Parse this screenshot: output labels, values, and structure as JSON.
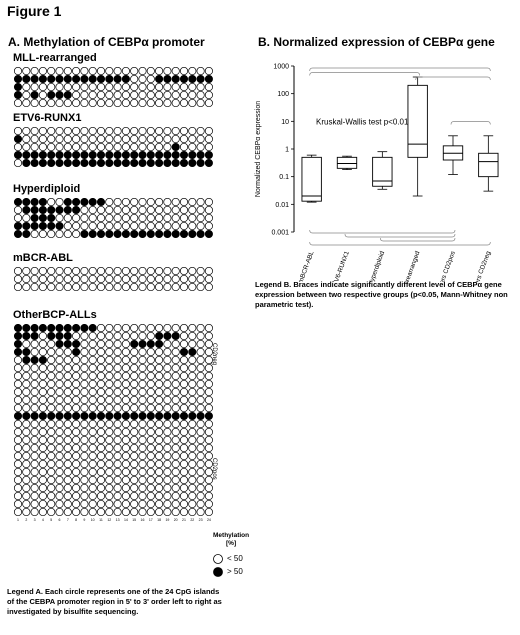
{
  "figure_title": "Figure 1",
  "panel_a": {
    "title": "A. Methylation of CEBPα promoter",
    "groups": [
      {
        "name": "MLL-rearranged",
        "rows": [
          "000000000000000000000000",
          "111111111111110001111111",
          "100000000000000000000000",
          "101011100000000000000000",
          "000000000000000000000000"
        ]
      },
      {
        "name": "ETV6-RUNX1",
        "rows": [
          "000000000000000000000000",
          "100000000000000000000000",
          "000000000000000000010000",
          "111111111111111111111111",
          "011111111111111111111111"
        ]
      },
      {
        "name": "Hyperdiploid",
        "rows": [
          "111100111110000000000000",
          "011111110000000000000000",
          "001110000000000000000000",
          "111111000000000000000000",
          "110000001111111111111111"
        ]
      },
      {
        "name": "mBCR-ABL",
        "rows": [
          "000000000000000000000000",
          "000000000000000000000000",
          "000000000000000000000000"
        ]
      },
      {
        "name": "OtherBCP-ALLs",
        "rows": [
          "111111111100000000000000",
          "111011100000000001110000",
          "100001110000001111000000",
          "110000010000000000001100",
          "011100000000000000000000",
          "000000000000000000000000",
          "000000000000000000000000",
          "000000000000000000000000",
          "000000000000000000000000",
          "000000000000000000000000",
          "000000000000000000000000",
          "111111111111111111111111",
          "000000000000000000000000",
          "000000000000000000000000",
          "000000000000000000000000",
          "000000000000000000000000",
          "000000000000000000000000",
          "000000000000000000000000",
          "000000000000000000000000",
          "000000000000000000000000",
          "000000000000000000000000",
          "000000000000000000000000",
          "000000000000000000000000",
          "000000000000000000000000"
        ]
      }
    ],
    "side_labels": [
      "CD2neg",
      "CD2pos"
    ],
    "methylation_legend": {
      "title_line1": "Methylation",
      "title_line2": "[%]",
      "low": "< 50",
      "high": "> 50"
    },
    "legend_text": "Legend A. Each circle represents one of the 24 CpG islands of the CEBPA promoter region in 5' to 3' order left to right as investigated by bisulfite sequencing."
  },
  "panel_b": {
    "title": "B. Normalized expression of CEBPα gene",
    "annotation": "Kruskal-Wallis test p<0.01",
    "legend_text": "Legend B. Braces indicate significantly different level of CEBPα gene expression between two respective groups (p<0.05, Mann-Whitney non parametric test)."
  },
  "chart_data": {
    "type": "box",
    "ylabel": "Normalized CEBPα expression",
    "yscale": "log",
    "ylim": [
      0.001,
      1000
    ],
    "yticks": [
      "0.001",
      "0.01",
      "0.1",
      "1",
      "10",
      "100",
      "1000"
    ],
    "categories": [
      "mBCR-ABL",
      "ETV6-RUNX1",
      "Hyperdiploid",
      "MLL-rearranged",
      "others CD2pos",
      "others CD2neg"
    ],
    "boxes": [
      {
        "min": 0.012,
        "q1": 0.013,
        "median": 0.02,
        "q3": 0.5,
        "max": 0.6
      },
      {
        "min": 0.18,
        "q1": 0.2,
        "median": 0.3,
        "q3": 0.5,
        "max": 0.55
      },
      {
        "min": 0.035,
        "q1": 0.045,
        "median": 0.07,
        "q3": 0.5,
        "max": 0.8
      },
      {
        "min": 0.02,
        "q1": 0.5,
        "median": 1.5,
        "q3": 200,
        "max": 400
      },
      {
        "min": 0.12,
        "q1": 0.4,
        "median": 0.7,
        "q3": 1.3,
        "max": 3
      },
      {
        "min": 0.03,
        "q1": 0.1,
        "median": 0.35,
        "q3": 0.7,
        "max": 3
      }
    ],
    "braces_top": [
      [
        0,
        5
      ],
      [
        0,
        3
      ],
      [
        3,
        5
      ],
      [
        4,
        5
      ]
    ],
    "braces_bottom": [
      [
        0,
        4
      ],
      [
        1,
        4
      ],
      [
        2,
        4
      ],
      [
        0,
        5
      ]
    ]
  }
}
